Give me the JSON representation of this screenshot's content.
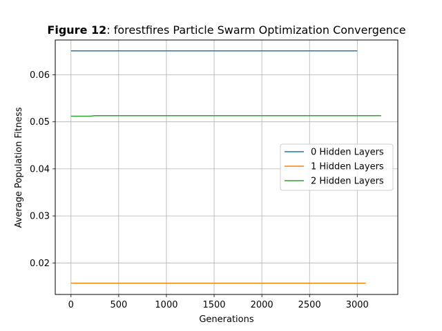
{
  "chart_data": {
    "type": "line",
    "title_bold": "Figure 12",
    "title_rest": ": forestfires Particle Swarm Optimization Convergence",
    "xlabel": "Generations",
    "ylabel": "Average Population Fitness",
    "xlim": [
      -165,
      3425
    ],
    "ylim": [
      0.0133,
      0.0674
    ],
    "xticks": [
      0,
      500,
      1000,
      1500,
      2000,
      2500,
      3000
    ],
    "yticks": [
      0.02,
      0.03,
      0.04,
      0.05,
      0.06
    ],
    "xtick_labels": [
      "0",
      "500",
      "1000",
      "1500",
      "2000",
      "2500",
      "3000"
    ],
    "ytick_labels": [
      "0.02",
      "0.03",
      "0.04",
      "0.05",
      "0.06"
    ],
    "grid": true,
    "legend_position": "center-right",
    "series": [
      {
        "name": "0 Hidden Layers",
        "color": "#1f77b4",
        "x": [
          0,
          3000
        ],
        "y": [
          0.0651,
          0.0651
        ]
      },
      {
        "name": "1 Hidden Layers",
        "color": "#ff7f0e",
        "x": [
          0,
          3090
        ],
        "y": [
          0.0157,
          0.0157
        ]
      },
      {
        "name": "2 Hidden Layers",
        "color": "#2ca02c",
        "x": [
          0,
          200,
          250,
          3250
        ],
        "y": [
          0.0512,
          0.0512,
          0.0513,
          0.0513
        ]
      }
    ]
  }
}
